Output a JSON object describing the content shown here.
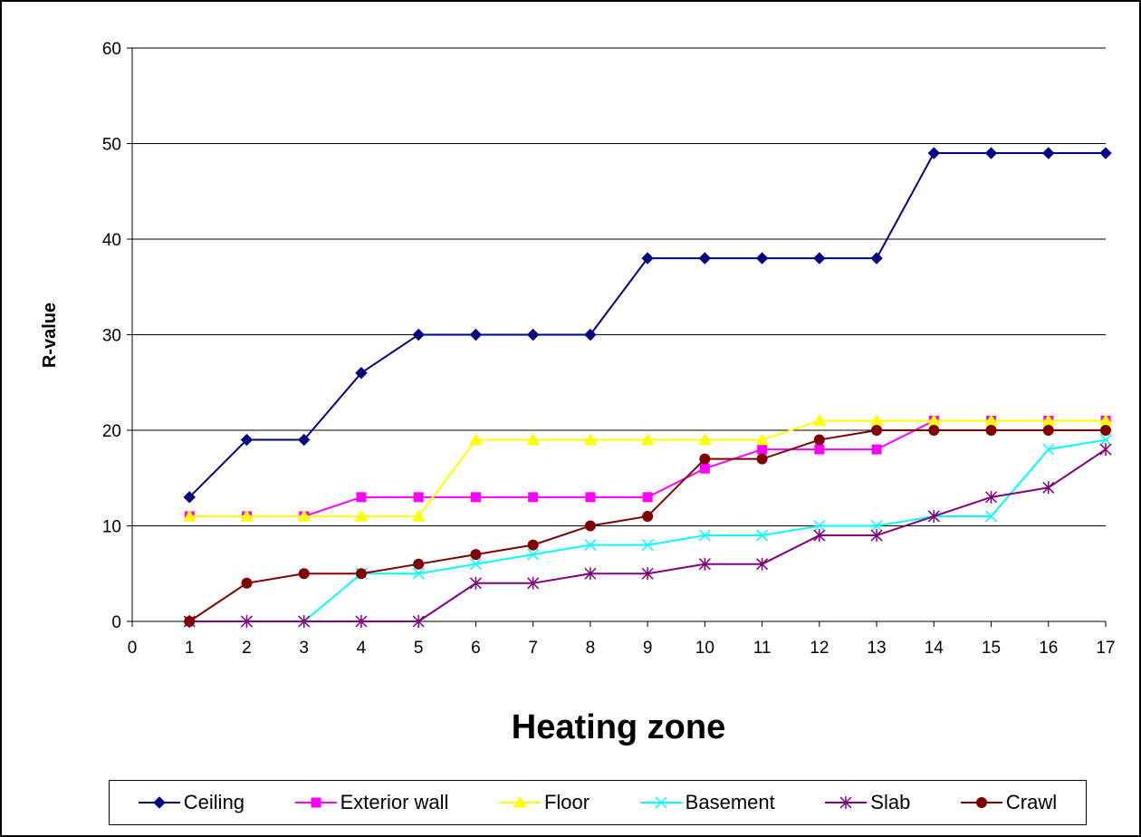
{
  "chart_data": {
    "type": "line",
    "xlabel": "Heating zone",
    "ylabel": "R-value",
    "xlim": [
      0,
      17
    ],
    "ylim": [
      0,
      60
    ],
    "x_ticks": [
      "0",
      "1",
      "2",
      "3",
      "4",
      "5",
      "6",
      "7",
      "8",
      "9",
      "10",
      "11",
      "12",
      "13",
      "14",
      "15",
      "16",
      "17"
    ],
    "y_ticks": [
      "0",
      "10",
      "20",
      "30",
      "40",
      "50",
      "60"
    ],
    "grid": "horizontal",
    "legend_position": "bottom",
    "x": [
      1,
      2,
      3,
      4,
      5,
      6,
      7,
      8,
      9,
      10,
      11,
      12,
      13,
      14,
      15,
      16,
      17
    ],
    "series": [
      {
        "name": "Ceiling",
        "color": "#000080",
        "marker": "diamond",
        "values": [
          13,
          19,
          19,
          26,
          30,
          30,
          30,
          30,
          38,
          38,
          38,
          38,
          38,
          49,
          49,
          49,
          49
        ]
      },
      {
        "name": "Exterior wall",
        "color": "#FF00FF",
        "marker": "square",
        "values": [
          11,
          11,
          11,
          13,
          13,
          13,
          13,
          13,
          13,
          16,
          18,
          18,
          18,
          21,
          21,
          21,
          21
        ]
      },
      {
        "name": "Floor",
        "color": "#FFFF00",
        "marker": "triangle",
        "values": [
          11,
          11,
          11,
          11,
          11,
          19,
          19,
          19,
          19,
          19,
          19,
          21,
          21,
          21,
          21,
          21,
          21
        ]
      },
      {
        "name": "Basement",
        "color": "#00FFFF",
        "marker": "x",
        "values": [
          0,
          0,
          0,
          5,
          5,
          6,
          7,
          8,
          8,
          9,
          9,
          10,
          10,
          11,
          11,
          18,
          19
        ]
      },
      {
        "name": "Slab",
        "color": "#800080",
        "marker": "star",
        "values": [
          0,
          0,
          0,
          0,
          0,
          4,
          4,
          5,
          5,
          6,
          6,
          9,
          9,
          11,
          13,
          14,
          18
        ]
      },
      {
        "name": "Crawl",
        "color": "#800000",
        "marker": "circle",
        "values": [
          0,
          4,
          5,
          5,
          6,
          7,
          8,
          10,
          11,
          17,
          17,
          19,
          20,
          20,
          20,
          20,
          20
        ]
      }
    ]
  }
}
